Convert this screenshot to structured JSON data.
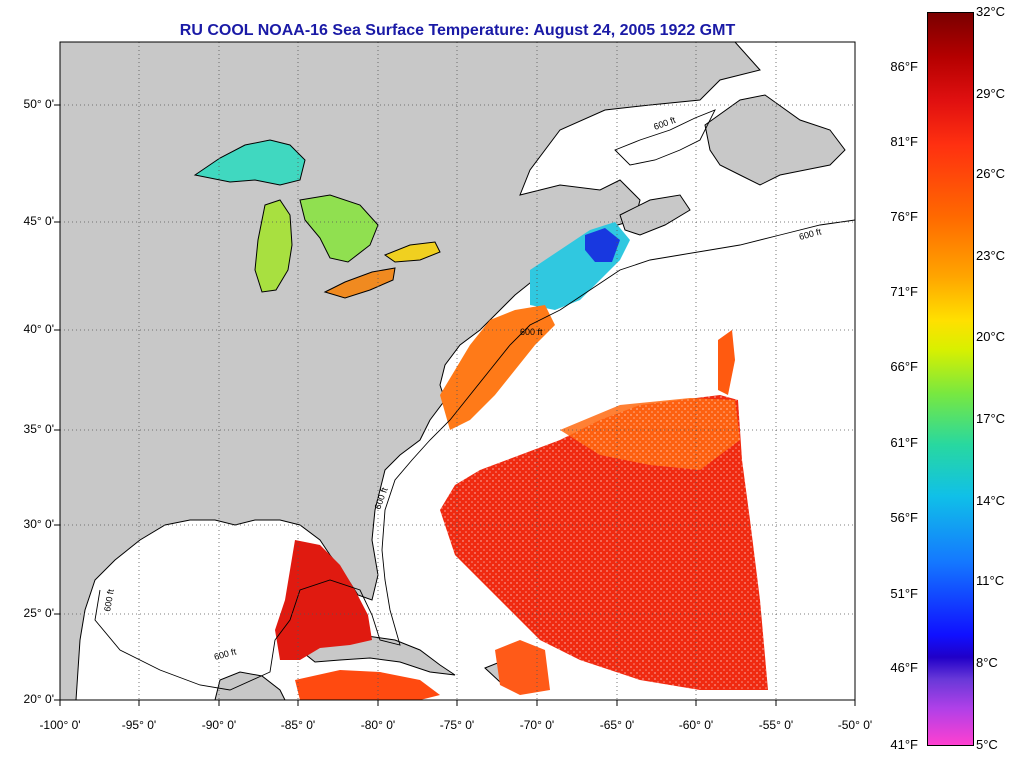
{
  "title": "RU COOL  NOAA-16  Sea Surface Temperature:  August 24, 2005 1922 GMT",
  "lat_labels": [
    "50° 0'",
    "45° 0'",
    "40° 0'",
    "35° 0'",
    "30° 0'",
    "25° 0'",
    "20° 0'"
  ],
  "lon_labels": [
    "-100° 0'",
    "-95° 0'",
    "-90° 0'",
    "-85° 0'",
    "-80° 0'",
    "-75° 0'",
    "-70° 0'",
    "-65° 0'",
    "-60° 0'",
    "-55° 0'",
    "-50° 0'"
  ],
  "fahrenheit_labels": [
    "86°F",
    "81°F",
    "76°F",
    "71°F",
    "66°F",
    "61°F",
    "56°F",
    "51°F",
    "46°F",
    "41°F"
  ],
  "celsius_labels": [
    "32°C",
    "29°C",
    "26°C",
    "23°C",
    "20°C",
    "17°C",
    "14°C",
    "11°C",
    "8°C",
    "5°C"
  ],
  "isobath_label": "600 ft",
  "colors": {
    "land": "#c8c8c8",
    "ocean_nodata": "#ffffff",
    "title": "#1a1aa6"
  }
}
